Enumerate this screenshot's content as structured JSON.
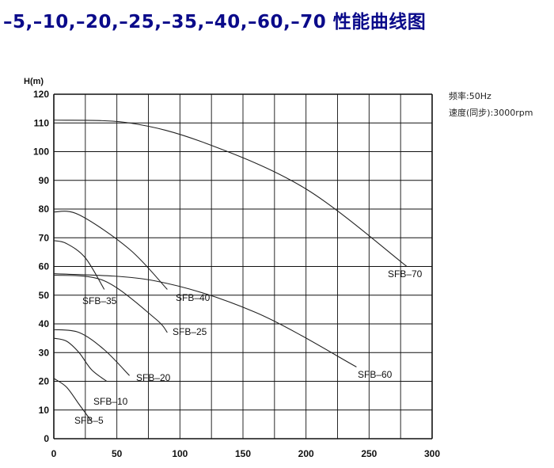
{
  "page": {
    "title": "–5,–10,–20,–25,–35,–40,–60,–70 性能曲线图"
  },
  "info": {
    "frequency": "频率:50Hz",
    "speed": "速度(同步):3000rpm"
  },
  "chart_data": {
    "type": "line",
    "title": "–5,–10,–20,–25,–35,–40,–60,–70 性能曲线图",
    "xlabel": "",
    "ylabel": "H(m)",
    "xlim": [
      0,
      300
    ],
    "ylim": [
      0,
      120
    ],
    "x_ticks": [
      "0",
      "50",
      "100",
      "150",
      "200",
      "250",
      "300"
    ],
    "y_ticks": [
      "0",
      "10",
      "20",
      "30",
      "40",
      "50",
      "60",
      "70",
      "80",
      "90",
      "100",
      "110",
      "120"
    ],
    "grid": true,
    "series": [
      {
        "name": "SFB–5",
        "x": [
          0,
          10,
          20,
          30
        ],
        "y": [
          21,
          18,
          12,
          6
        ]
      },
      {
        "name": "SFB–10",
        "x": [
          0,
          10,
          20,
          30,
          42
        ],
        "y": [
          35,
          34,
          30,
          24,
          20
        ]
      },
      {
        "name": "SFB–20",
        "x": [
          0,
          20,
          40,
          60
        ],
        "y": [
          38,
          37,
          31,
          22
        ]
      },
      {
        "name": "SFB–25",
        "x": [
          0,
          40,
          80,
          90
        ],
        "y": [
          57,
          55,
          42,
          37
        ]
      },
      {
        "name": "SFB–35",
        "x": [
          0,
          10,
          25,
          40
        ],
        "y": [
          69,
          68,
          63,
          52
        ]
      },
      {
        "name": "SFB–40",
        "x": [
          0,
          20,
          60,
          90
        ],
        "y": [
          79,
          78,
          66,
          52
        ]
      },
      {
        "name": "SFB–60",
        "x": [
          0,
          80,
          160,
          240
        ],
        "y": [
          57.5,
          55,
          44,
          25
        ]
      },
      {
        "name": "SFB–70",
        "x": [
          0,
          60,
          120,
          200,
          280
        ],
        "y": [
          111,
          110,
          103,
          87,
          60
        ]
      }
    ]
  }
}
